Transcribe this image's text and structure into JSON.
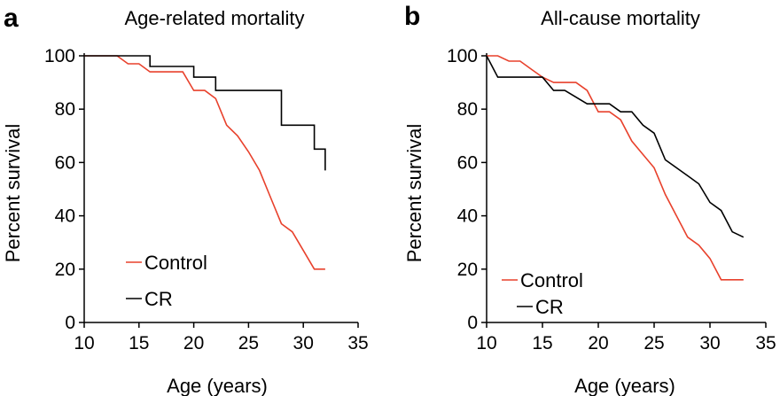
{
  "chart_data": [
    {
      "type": "line",
      "panel_letter": "a",
      "title": "Age-related mortality",
      "xlabel": "Age (years)",
      "ylabel": "Percent survival",
      "xlim": [
        10,
        35
      ],
      "ylim": [
        0,
        100
      ],
      "xticks": [
        10,
        15,
        20,
        25,
        30,
        35
      ],
      "yticks": [
        0,
        20,
        40,
        60,
        80,
        100
      ],
      "grid": false,
      "legend": "lower-left",
      "series": [
        {
          "name": "Control",
          "color": "#e8412c",
          "step": false,
          "x": [
            10,
            13,
            14,
            15,
            16,
            19,
            20,
            21,
            22,
            23,
            24,
            25,
            26,
            27,
            28,
            29,
            30,
            31,
            32
          ],
          "y": [
            100,
            100,
            97,
            97,
            94,
            94,
            87,
            87,
            84,
            74,
            70,
            64,
            57,
            47,
            37,
            34,
            27,
            20,
            20
          ]
        },
        {
          "name": "CR",
          "color": "#000000",
          "step": true,
          "x": [
            10,
            15,
            16,
            19,
            20,
            22,
            25,
            28,
            29,
            31,
            32
          ],
          "y": [
            100,
            100,
            96,
            96,
            92,
            87,
            87,
            74,
            74,
            65,
            57
          ]
        }
      ]
    },
    {
      "type": "line",
      "panel_letter": "b",
      "title": "All-cause mortality",
      "xlabel": "Age (years)",
      "ylabel": "Percent survival",
      "xlim": [
        10,
        35
      ],
      "ylim": [
        0,
        100
      ],
      "xticks": [
        10,
        15,
        20,
        25,
        30,
        35
      ],
      "yticks": [
        0,
        20,
        40,
        60,
        80,
        100
      ],
      "grid": false,
      "legend": "lower-left",
      "series": [
        {
          "name": "Control",
          "color": "#e8412c",
          "step": false,
          "x": [
            10,
            11,
            12,
            13,
            14,
            15,
            16,
            17,
            18,
            19,
            20,
            21,
            22,
            23,
            24,
            25,
            26,
            27,
            28,
            29,
            30,
            31,
            32,
            33
          ],
          "y": [
            100,
            100,
            98,
            98,
            95,
            92,
            90,
            90,
            90,
            87,
            79,
            79,
            76,
            68,
            63,
            58,
            48,
            40,
            32,
            29,
            24,
            16,
            16,
            16
          ]
        },
        {
          "name": "CR",
          "color": "#000000",
          "step": false,
          "x": [
            10,
            11,
            15,
            16,
            17,
            19,
            21,
            22,
            23,
            24,
            25,
            26,
            27,
            28,
            29,
            30,
            31,
            32,
            33
          ],
          "y": [
            100,
            92,
            92,
            87,
            87,
            82,
            82,
            79,
            79,
            74,
            71,
            61,
            58,
            55,
            52,
            45,
            42,
            34,
            32
          ]
        }
      ]
    }
  ]
}
